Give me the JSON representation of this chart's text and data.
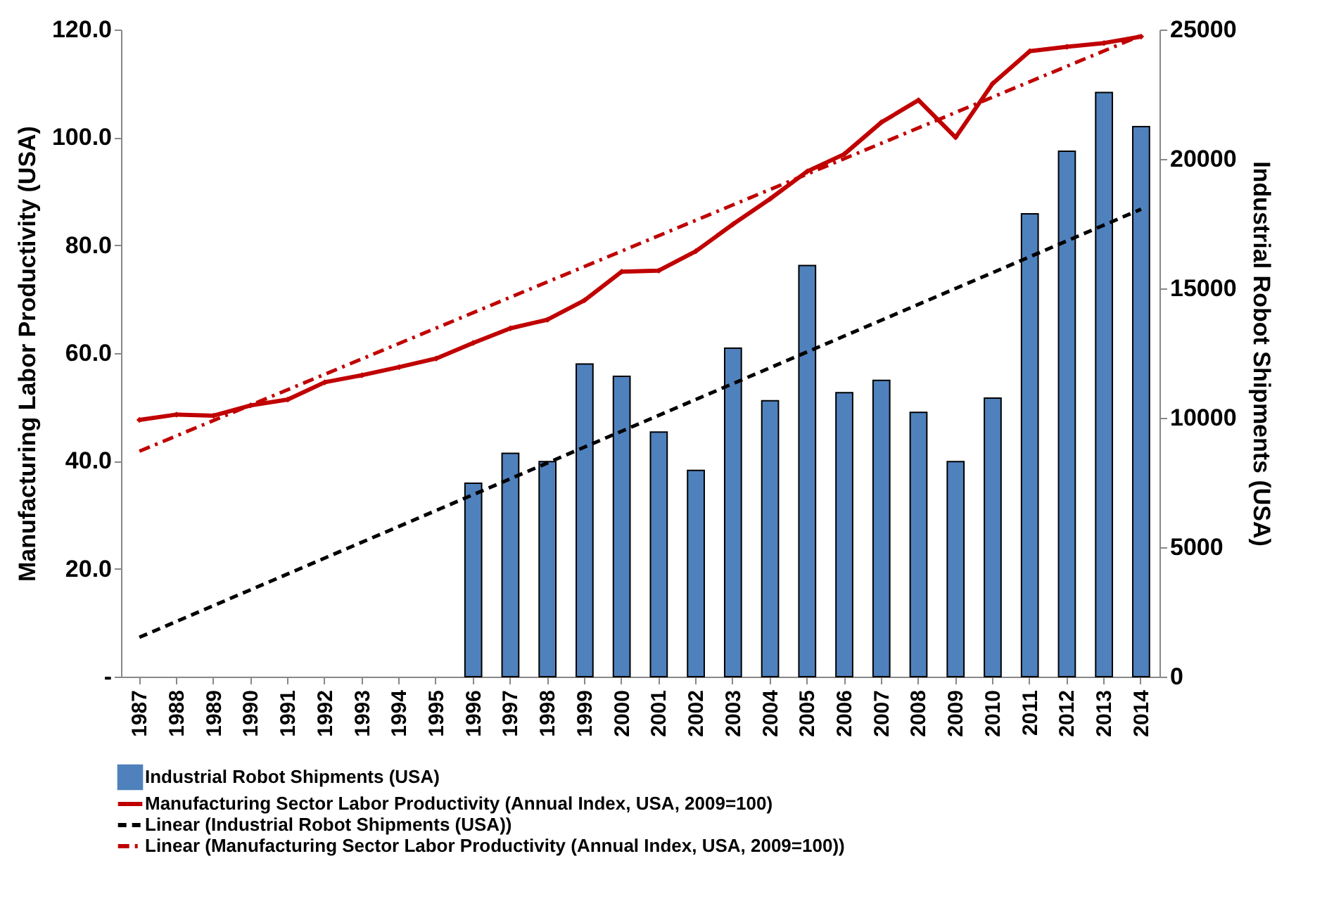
{
  "chart_data": {
    "type": "bar",
    "ylabel": "Manufacturing Labor Productivity (USA)",
    "y2label": "Industrial Robot Shipments (USA)",
    "categories": [
      "1987",
      "1988",
      "1989",
      "1990",
      "1991",
      "1992",
      "1993",
      "1994",
      "1995",
      "1996",
      "1997",
      "1998",
      "1999",
      "2000",
      "2001",
      "2002",
      "2003",
      "2004",
      "2005",
      "2006",
      "2007",
      "2008",
      "2009",
      "2010",
      "2011",
      "2012",
      "2013",
      "2014"
    ],
    "series": [
      {
        "name": "Industrial Robot Shipments (USA)",
        "axis": "y2",
        "color": "#4f81bd",
        "values": [
          null,
          null,
          null,
          null,
          null,
          null,
          null,
          null,
          null,
          7470,
          8630,
          8310,
          12080,
          11600,
          9450,
          7970,
          12690,
          10660,
          15880,
          10970,
          11450,
          10210,
          8310,
          10760,
          17880,
          20300,
          22570,
          21250
        ]
      },
      {
        "name": "Manufacturing Sector Labor Productivity (Annual Index, USA, 2009=100)",
        "type": "line",
        "axis": "y",
        "color": "#c00000",
        "marker": "diamond",
        "line_style": "solid",
        "values": [
          47.6,
          48.6,
          48.4,
          50.3,
          51.4,
          54.6,
          55.9,
          57.4,
          59.0,
          61.9,
          64.6,
          66.2,
          69.8,
          75.1,
          75.3,
          78.9,
          83.9,
          88.6,
          93.7,
          96.9,
          102.8,
          106.9,
          100.0,
          110.0,
          116.0,
          116.8,
          117.5,
          118.7
        ]
      },
      {
        "name": "Linear (Industrial Robot Shipments (USA))",
        "type": "line",
        "axis": "y2",
        "color": "#000000",
        "line_style": "dashed",
        "values": [
          1520,
          null,
          null,
          null,
          null,
          null,
          null,
          null,
          null,
          null,
          null,
          null,
          null,
          null,
          null,
          null,
          null,
          null,
          null,
          null,
          null,
          null,
          null,
          null,
          null,
          null,
          null,
          18060
        ]
      },
      {
        "name": "Linear (Manufacturing Sector Labor Productivity (Annual Index, USA, 2009=100))",
        "type": "line",
        "axis": "y",
        "color": "#c00000",
        "line_style": "dashdot",
        "values": [
          41.8,
          null,
          null,
          null,
          null,
          null,
          null,
          null,
          null,
          null,
          null,
          null,
          null,
          null,
          null,
          null,
          null,
          null,
          null,
          null,
          null,
          null,
          null,
          null,
          null,
          null,
          null,
          118.9
        ]
      }
    ],
    "ylim": [
      0,
      120
    ],
    "yticks": [
      {
        "value": 0,
        "label": "-"
      },
      {
        "value": 20,
        "label": "20.0"
      },
      {
        "value": 40,
        "label": "40.0"
      },
      {
        "value": 60,
        "label": "60.0"
      },
      {
        "value": 80,
        "label": "80.0"
      },
      {
        "value": 100,
        "label": "100.0"
      },
      {
        "value": 120,
        "label": "120.0"
      }
    ],
    "y2lim": [
      0,
      25000
    ],
    "y2ticks": [
      0,
      5000,
      10000,
      15000,
      20000,
      25000
    ],
    "grid": false,
    "legend": "bottom"
  }
}
